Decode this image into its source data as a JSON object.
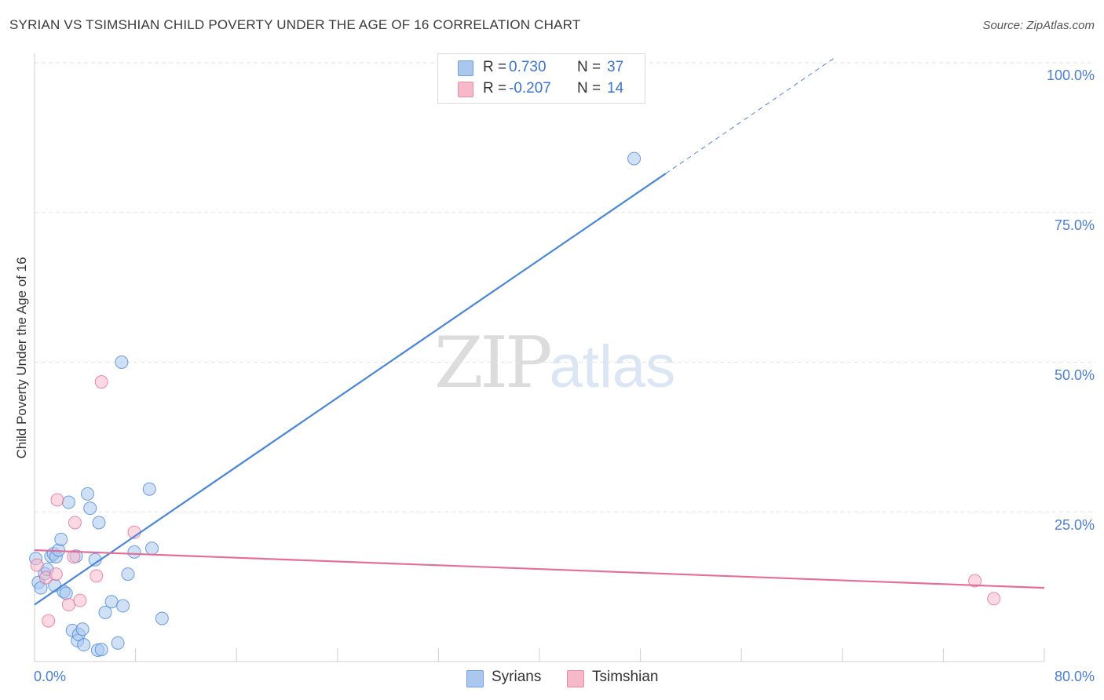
{
  "header": {
    "title": "SYRIAN VS TSIMSHIAN CHILD POVERTY UNDER THE AGE OF 16 CORRELATION CHART",
    "source": "Source: ZipAtlas.com"
  },
  "watermark": {
    "zip": "ZIP",
    "atlas": "atlas"
  },
  "stats": {
    "rows": [
      {
        "r_label": "R =",
        "r_value": "0.730",
        "n_label": "N =",
        "n_value": "37",
        "color": "#aac8ee"
      },
      {
        "r_label": "R =",
        "r_value": "-0.207",
        "n_label": "N =",
        "n_value": "14",
        "color": "#f5b9ca"
      }
    ]
  },
  "legend": {
    "items": [
      {
        "label": "Syrians",
        "color": "#aac8ee"
      },
      {
        "label": "Tsimshian",
        "color": "#f5b9ca"
      }
    ]
  },
  "chart_data": {
    "type": "scatter",
    "title": "SYRIAN VS TSIMSHIAN CHILD POVERTY UNDER THE AGE OF 16 CORRELATION CHART",
    "xlabel": "",
    "ylabel": "Child Poverty Under the Age of 16",
    "xlim": [
      0,
      80
    ],
    "ylim": [
      0,
      100
    ],
    "x_tick_labels": [
      "0.0%",
      "80.0%"
    ],
    "y_ticks": [
      25,
      50,
      75,
      100
    ],
    "y_tick_labels": [
      "25.0%",
      "50.0%",
      "75.0%",
      "100.0%"
    ],
    "grid": true,
    "series": [
      {
        "name": "Syrians",
        "color": "#4a86d8",
        "fill": "#aac8ee",
        "trend": {
          "x0": 0,
          "y0": 9.5,
          "x1": 50,
          "y1": 81.5,
          "dash_to_x": 63.5,
          "dash_to_y": 101
        },
        "points": [
          [
            0.1,
            17.2
          ],
          [
            0.3,
            13.2
          ],
          [
            0.5,
            12.3
          ],
          [
            0.8,
            14.7
          ],
          [
            1.0,
            15.4
          ],
          [
            1.3,
            17.6
          ],
          [
            1.5,
            18.0
          ],
          [
            1.6,
            12.7
          ],
          [
            1.7,
            17.5
          ],
          [
            1.9,
            18.6
          ],
          [
            2.1,
            20.4
          ],
          [
            2.3,
            11.7
          ],
          [
            2.5,
            11.4
          ],
          [
            2.7,
            26.6
          ],
          [
            3.0,
            5.2
          ],
          [
            3.3,
            17.6
          ],
          [
            3.4,
            3.5
          ],
          [
            3.5,
            4.5
          ],
          [
            3.8,
            5.4
          ],
          [
            3.9,
            2.8
          ],
          [
            4.2,
            28.0
          ],
          [
            4.4,
            25.6
          ],
          [
            4.8,
            17.0
          ],
          [
            5.0,
            1.9
          ],
          [
            5.1,
            23.2
          ],
          [
            5.3,
            2.0
          ],
          [
            5.6,
            8.2
          ],
          [
            6.1,
            10.0
          ],
          [
            6.6,
            3.1
          ],
          [
            6.9,
            50.0
          ],
          [
            7.0,
            9.3
          ],
          [
            7.4,
            14.6
          ],
          [
            7.9,
            18.3
          ],
          [
            9.1,
            28.8
          ],
          [
            9.3,
            18.9
          ],
          [
            10.1,
            7.2
          ],
          [
            47.5,
            84.0
          ]
        ]
      },
      {
        "name": "Tsimshian",
        "color": "#e46e98",
        "fill": "#f5b9ca",
        "trend": {
          "x0": 0,
          "y0": 18.6,
          "x1": 80,
          "y1": 12.3
        },
        "points": [
          [
            0.2,
            16.1
          ],
          [
            0.9,
            14.0
          ],
          [
            1.1,
            6.8
          ],
          [
            1.7,
            14.6
          ],
          [
            1.8,
            27.0
          ],
          [
            2.7,
            9.5
          ],
          [
            3.1,
            17.5
          ],
          [
            3.2,
            23.2
          ],
          [
            3.6,
            10.2
          ],
          [
            4.9,
            14.3
          ],
          [
            5.3,
            46.7
          ],
          [
            7.9,
            21.6
          ],
          [
            74.5,
            13.5
          ],
          [
            76.0,
            10.5
          ]
        ]
      }
    ]
  }
}
